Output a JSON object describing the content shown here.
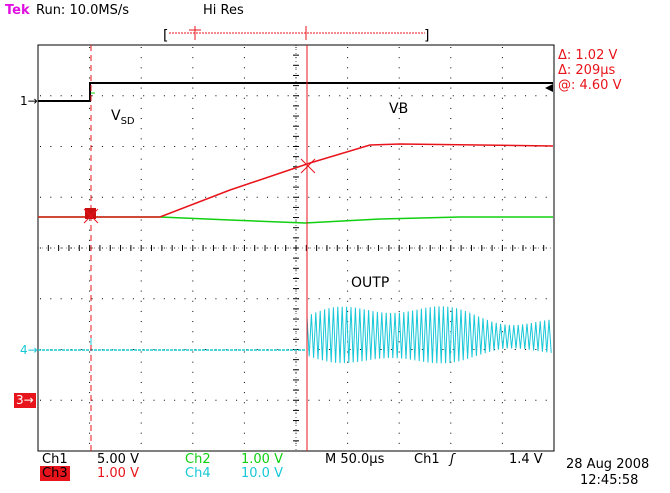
{
  "header": {
    "brand": "Tek",
    "run_status": "Run: 10.0MS/s",
    "acq_mode": "Hi Res"
  },
  "cursor_readout": {
    "delta_v": "Δ: 1.02 V",
    "delta_t": "Δ: 209µs",
    "at_v": "@: 4.60 V"
  },
  "waveform_labels": {
    "vsd": "V",
    "vsd_sub": "SD",
    "vb": "VB",
    "outp": "OUTP"
  },
  "channel_markers": {
    "ch1": "1→",
    "ch4": "4→",
    "ch3": "3→"
  },
  "bottom_readout": {
    "ch1_label": "Ch1",
    "ch1_scale": "5.00 V",
    "ch2_label": "Ch2",
    "ch2_scale": "1.00 V",
    "ch3_label": "Ch3",
    "ch3_scale": "1.00 V",
    "ch4_label": "Ch4",
    "ch4_scale": "10.0 V",
    "timebase": "M 50.0µs",
    "trigger_source": "Ch1",
    "trigger_slope": "ʃ",
    "trigger_level": "1.4 V",
    "date": "28 Aug 2008",
    "time": "12:45:58"
  },
  "colors": {
    "ch1": "#000000",
    "ch2": "#10d010",
    "ch3": "#e8141b",
    "ch4": "#18c8d8",
    "brand": "#e010e0"
  }
}
